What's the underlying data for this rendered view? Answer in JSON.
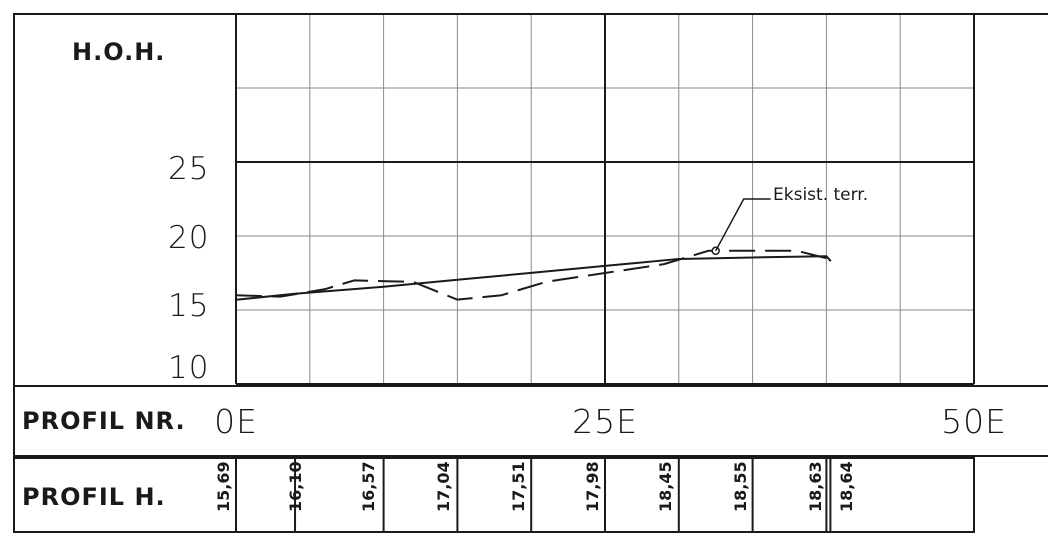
{
  "chart_data": {
    "type": "line",
    "ylabel": "H.O.H.",
    "yticks": [
      "25",
      "20",
      "15",
      "10"
    ],
    "ylim": [
      10,
      35
    ],
    "x_title": "PROFIL NR.",
    "xticks": [
      "0E",
      "25E",
      "50E"
    ],
    "xlim": [
      0,
      50
    ],
    "grid": true,
    "series": [
      {
        "x": [
          0,
          4,
          10,
          15,
          20,
          25,
          30,
          35,
          40,
          40.3
        ],
        "y": [
          15.69,
          16.1,
          16.57,
          17.04,
          17.51,
          17.98,
          18.45,
          18.55,
          18.63,
          18.3
        ]
      },
      {
        "name": "Eksist. terr.",
        "style": "dashed",
        "x": [
          0,
          3,
          6,
          8,
          12,
          15,
          18,
          21,
          25,
          29,
          32,
          38,
          40
        ],
        "y": [
          16.0,
          15.9,
          16.4,
          17.0,
          16.9,
          15.7,
          16.0,
          16.9,
          17.5,
          18.1,
          19.0,
          19.0,
          18.5
        ]
      }
    ],
    "annotation": "Eksist. terr.",
    "annotation_at": {
      "x": 32.5,
      "y": 19.0
    },
    "table_label": "PROFIL H.",
    "table_values": [
      "15,69",
      "16,10",
      "16,57",
      "17,04",
      "17,51",
      "17,98",
      "18,45",
      "18,55",
      "18,63",
      "18,64"
    ]
  }
}
